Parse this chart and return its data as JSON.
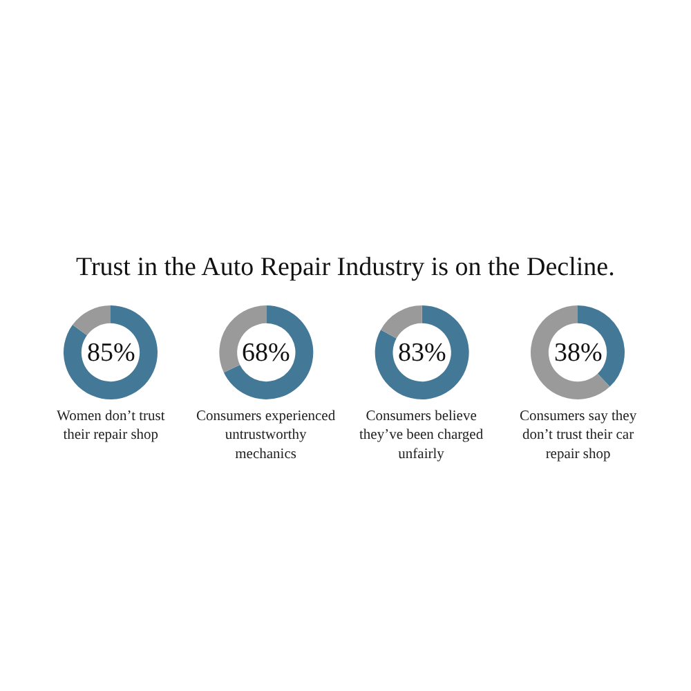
{
  "chart_data": [
    {
      "type": "donut",
      "title": "Trust in the Auto Repair Industry is on the Decline.",
      "categories": [
        null,
        null
      ],
      "values": [
        85,
        15
      ],
      "colors": [
        "#437896",
        "#9a9a9a"
      ],
      "value_labels": [
        "85%",
        null
      ],
      "annotations": [
        "Women don’t trust their repair shop"
      ]
    },
    {
      "type": "donut",
      "categories": [
        null,
        null
      ],
      "values": [
        68,
        32
      ],
      "colors": [
        "#437896",
        "#9a9a9a"
      ],
      "value_labels": [
        "68%",
        null
      ],
      "annotations": [
        "Consumers experienced untrustworthy mechanics"
      ]
    },
    {
      "type": "donut",
      "categories": [
        null,
        null
      ],
      "values": [
        83,
        17
      ],
      "colors": [
        "#437896",
        "#9a9a9a"
      ],
      "value_labels": [
        "83%",
        null
      ],
      "annotations": [
        "Consumers believe they’ve been charged unfairly"
      ]
    },
    {
      "type": "donut",
      "categories": [
        null,
        null
      ],
      "values": [
        38,
        62
      ],
      "colors": [
        "#437896",
        "#9a9a9a"
      ],
      "value_labels": [
        "38%",
        null
      ],
      "annotations": [
        "Consumers say they don’t trust their car repair shop"
      ]
    }
  ]
}
